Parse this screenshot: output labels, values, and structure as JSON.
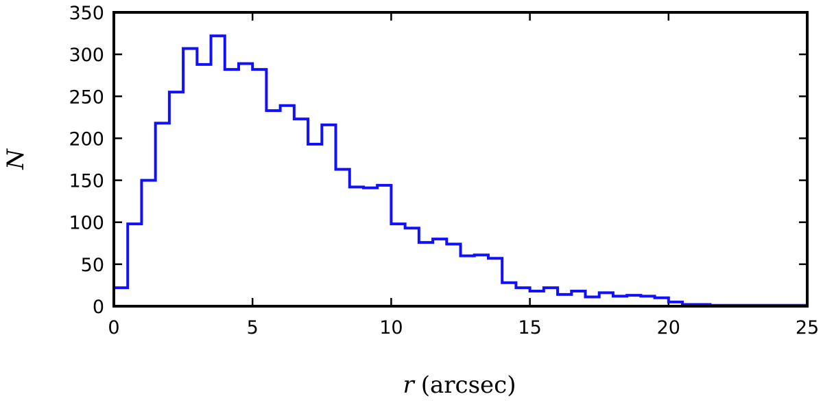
{
  "chart_data": {
    "type": "histogram",
    "title": "",
    "xlabel": {
      "symbol": "r",
      "unit": "(arcsec)"
    },
    "ylabel": "N",
    "xlim": [
      0,
      25
    ],
    "ylim": [
      0,
      350
    ],
    "x_ticks": [
      0,
      5,
      10,
      15,
      20,
      25
    ],
    "y_ticks": [
      0,
      50,
      100,
      150,
      200,
      250,
      300,
      350
    ],
    "grid": false,
    "legend": "none",
    "bin_width": 0.5,
    "series": [
      {
        "color": "#1010ff",
        "bin_edges": [
          0,
          0.5,
          1,
          1.5,
          2,
          2.5,
          3,
          3.5,
          4,
          4.5,
          5,
          5.5,
          6,
          6.5,
          7,
          7.5,
          8,
          8.5,
          9,
          9.5,
          10,
          10.5,
          11,
          11.5,
          12,
          12.5,
          13,
          13.5,
          14,
          14.5,
          15,
          15.5,
          16,
          16.5,
          17,
          17.5,
          18,
          18.5,
          19,
          19.5,
          20,
          20.5,
          21,
          21.5,
          22,
          22.5,
          23,
          23.5,
          24,
          24.5,
          25
        ],
        "counts": [
          22,
          98,
          150,
          218,
          255,
          307,
          288,
          322,
          282,
          289,
          282,
          233,
          239,
          223,
          193,
          216,
          163,
          142,
          141,
          144,
          98,
          93,
          76,
          80,
          74,
          60,
          61,
          57,
          28,
          22,
          18,
          22,
          14,
          18,
          11,
          16,
          12,
          13,
          12,
          10,
          5,
          2,
          2,
          1,
          1,
          1,
          1,
          1,
          1,
          1
        ]
      }
    ]
  }
}
